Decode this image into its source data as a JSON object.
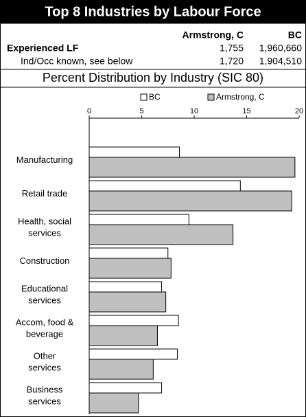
{
  "header": {
    "title": "Top 8 Industries by Labour Force"
  },
  "table": {
    "columns": [
      "Armstrong, C",
      "BC"
    ],
    "rows": [
      [
        "Experienced LF",
        "1,755",
        "1,960,660"
      ],
      [
        "Ind/Occ known, see below",
        "1,720",
        "1,904,510"
      ]
    ]
  },
  "chart_data": {
    "type": "bar",
    "orientation": "horizontal",
    "title": "Percent Distribution by Industry (SIC 80)",
    "categories": [
      [
        "Manufacturing"
      ],
      [
        "Retail trade"
      ],
      [
        "Health, social",
        "services"
      ],
      [
        "Construction"
      ],
      [
        "Educational",
        "services"
      ],
      [
        "Accom, food &",
        "beverage"
      ],
      [
        "Other",
        "services"
      ],
      [
        "Business",
        "services"
      ]
    ],
    "series": [
      {
        "name": "BC",
        "color": "#ffffff",
        "values": [
          8.6,
          14.4,
          9.5,
          7.5,
          6.9,
          8.5,
          8.4,
          6.9
        ]
      },
      {
        "name": "Armstrong, C",
        "color": "#c0c0c0",
        "values": [
          19.6,
          19.3,
          13.7,
          7.8,
          7.3,
          6.5,
          6.1,
          4.7
        ]
      }
    ],
    "xlim": [
      0,
      20
    ],
    "xticks": [
      0,
      5,
      10,
      15,
      20
    ],
    "legend": "top"
  }
}
